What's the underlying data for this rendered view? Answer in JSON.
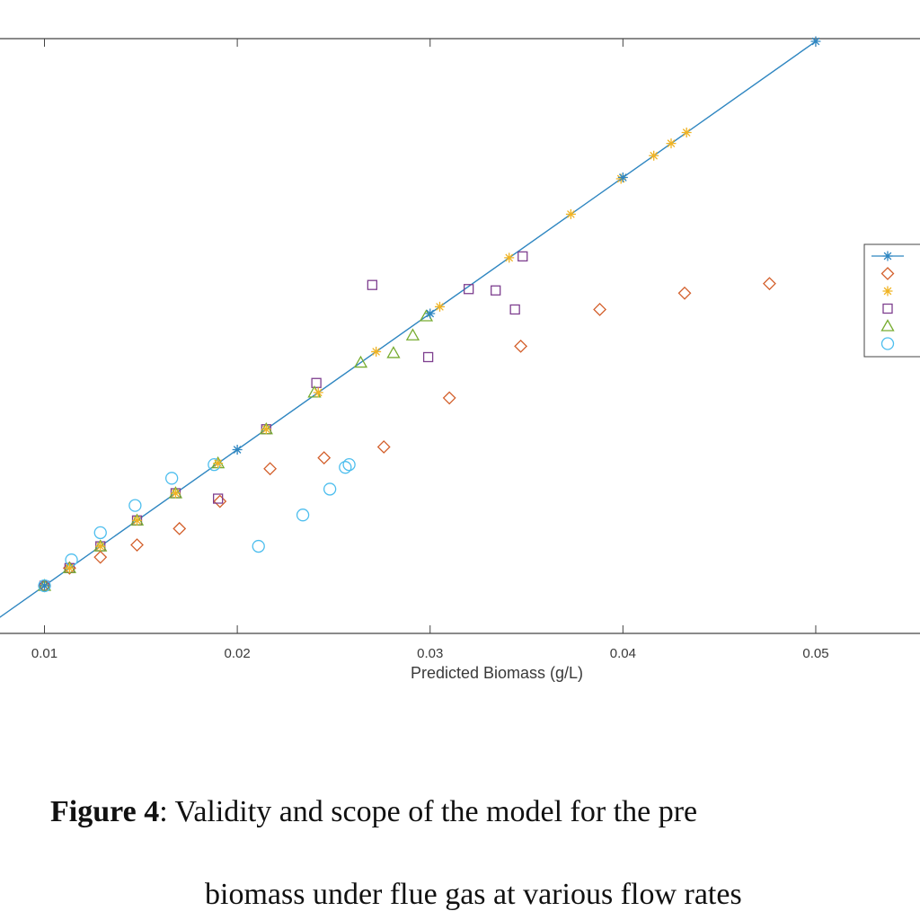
{
  "caption": {
    "label": "Figure 4",
    "line1_text": ": Validity and scope of the model for the pre",
    "line2_text": "biomass under flue gas at various flow rates"
  },
  "chart_data": {
    "type": "scatter",
    "title": "",
    "xlabel": "Predicted Biomass (g/L)",
    "ylabel": "",
    "xlim": [
      0.0076,
      0.0555
    ],
    "ylim": [
      0.0065,
      0.0502
    ],
    "xticks": [
      0.01,
      0.02,
      0.03,
      0.04,
      0.05
    ],
    "xtick_labels": [
      "0.01",
      "0.02",
      "0.03",
      "0.04",
      "0.05"
    ],
    "grid": false,
    "legend_position": "right",
    "colors": {
      "line": "#2e86c1",
      "diamond": "#d35f2b",
      "star": "#f0b323",
      "square": "#7e3f8f",
      "triangle": "#77ac30",
      "circle": "#4dbeee"
    },
    "series": [
      {
        "marker": "line-star",
        "x": [
          0.01,
          0.02,
          0.03,
          0.04,
          0.05
        ],
        "y": [
          0.01,
          0.02,
          0.03,
          0.04,
          0.05
        ]
      },
      {
        "marker": "diamond",
        "x": [
          0.01,
          0.0113,
          0.0129,
          0.0148,
          0.017,
          0.0191,
          0.0217,
          0.0245,
          0.0276,
          0.031,
          0.0347,
          0.0388,
          0.0432,
          0.0476
        ],
        "y": [
          0.01,
          0.0113,
          0.0121,
          0.013,
          0.0142,
          0.0162,
          0.0186,
          0.0194,
          0.0202,
          0.0238,
          0.0276,
          0.0303,
          0.0315,
          0.0322
        ]
      },
      {
        "marker": "star",
        "x": [
          0.01,
          0.0113,
          0.0129,
          0.0148,
          0.0168,
          0.019,
          0.0215,
          0.0242,
          0.0272,
          0.0305,
          0.0341,
          0.0373,
          0.0399,
          0.0416,
          0.0425,
          0.0433
        ],
        "y": [
          0.01,
          0.0113,
          0.0129,
          0.0148,
          0.0168,
          0.019,
          0.0215,
          0.0242,
          0.0272,
          0.0305,
          0.0341,
          0.0373,
          0.0399,
          0.0416,
          0.0425,
          0.0433
        ]
      },
      {
        "marker": "square",
        "x": [
          0.01,
          0.0113,
          0.0129,
          0.0148,
          0.0168,
          0.019,
          0.0215,
          0.0241,
          0.027,
          0.0299,
          0.032,
          0.0334,
          0.0344,
          0.0348
        ],
        "y": [
          0.01,
          0.0113,
          0.0129,
          0.0148,
          0.0168,
          0.0164,
          0.0215,
          0.0249,
          0.0321,
          0.0268,
          0.0318,
          0.0317,
          0.0303,
          0.0342
        ]
      },
      {
        "marker": "triangle",
        "x": [
          0.01,
          0.0113,
          0.0129,
          0.0148,
          0.0168,
          0.019,
          0.0215,
          0.024,
          0.0264,
          0.0281,
          0.0291,
          0.0298
        ],
        "y": [
          0.01,
          0.0113,
          0.0129,
          0.0148,
          0.0168,
          0.019,
          0.0215,
          0.0242,
          0.0264,
          0.0271,
          0.0284,
          0.0298
        ]
      },
      {
        "marker": "circle",
        "x": [
          0.01,
          0.0114,
          0.0129,
          0.0147,
          0.0166,
          0.0188,
          0.0211,
          0.0234,
          0.0248,
          0.0256,
          0.0258
        ],
        "y": [
          0.01,
          0.0119,
          0.0139,
          0.0159,
          0.0179,
          0.0189,
          0.0129,
          0.0152,
          0.0171,
          0.0187,
          0.0189
        ]
      }
    ],
    "legend_entries": [
      {
        "marker": "line-star"
      },
      {
        "marker": "diamond"
      },
      {
        "marker": "star"
      },
      {
        "marker": "square"
      },
      {
        "marker": "triangle"
      },
      {
        "marker": "circle"
      }
    ]
  }
}
